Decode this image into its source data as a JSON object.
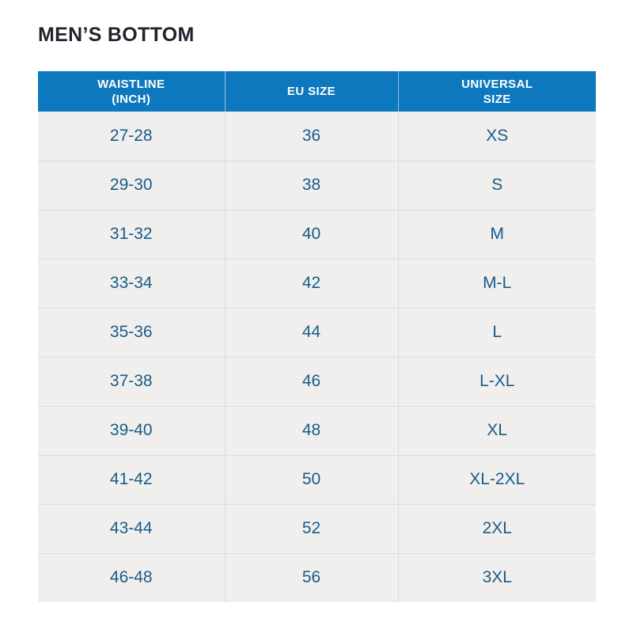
{
  "page": {
    "title": "MEN’S BOTTOM"
  },
  "table": {
    "columns": [
      {
        "id": "waistline",
        "label": "WAISTLINE\n(INCH)"
      },
      {
        "id": "eu",
        "label": "EU SIZE"
      },
      {
        "id": "universal",
        "label": "UNIVERSAL\nSIZE"
      }
    ],
    "row_keys": [
      "waistline",
      "eu",
      "universal"
    ],
    "rows": [
      {
        "waistline": "27-28",
        "eu": "36",
        "universal": "XS"
      },
      {
        "waistline": "29-30",
        "eu": "38",
        "universal": "S"
      },
      {
        "waistline": "31-32",
        "eu": "40",
        "universal": "M"
      },
      {
        "waistline": "33-34",
        "eu": "42",
        "universal": "M-L"
      },
      {
        "waistline": "35-36",
        "eu": "44",
        "universal": "L"
      },
      {
        "waistline": "37-38",
        "eu": "46",
        "universal": "L-XL"
      },
      {
        "waistline": "39-40",
        "eu": "48",
        "universal": "XL"
      },
      {
        "waistline": "41-42",
        "eu": "50",
        "universal": "XL-2XL"
      },
      {
        "waistline": "43-44",
        "eu": "52",
        "universal": "2XL"
      },
      {
        "waistline": "46-48",
        "eu": "56",
        "universal": "3XL"
      }
    ]
  },
  "colors": {
    "page_background": "#ffffff",
    "title_text": "#1f242d",
    "header_background": "#0e78be",
    "header_text": "#ffffff",
    "body_row_background": "#f0efee",
    "body_text": "#185c87",
    "grid_line": "#dcdbda"
  }
}
